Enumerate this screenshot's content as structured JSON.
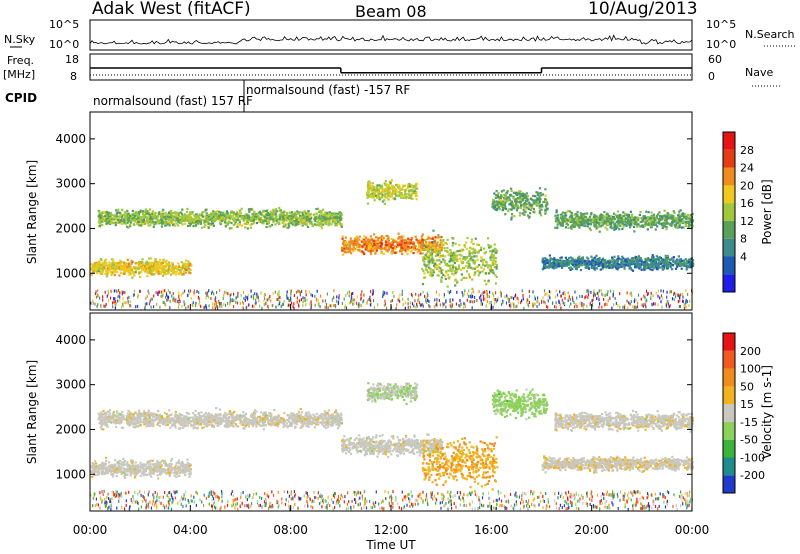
{
  "header": {
    "station": "Adak West (fitACF)",
    "beam": "Beam 08",
    "date": "10/Aug/2013"
  },
  "summary_panel": {
    "left_top_label": "N.Sky",
    "left_freq_label": "Freq.",
    "left_freq_unit": "[MHz]",
    "left_cpid_label": "CPID",
    "right_top_label": "N.Search",
    "right_nave_label": "Nave",
    "nsky_ticks": [
      "10^5",
      "10^0"
    ],
    "nsearch_ticks": [
      "10^5",
      "10^0"
    ],
    "freq_ticks": [
      "18",
      "8"
    ],
    "nave_ticks": [
      "60",
      "0"
    ],
    "cpid_labels": [
      {
        "text": "normalsound (fast) 157 RF",
        "time_h": 0.1
      },
      {
        "text": "normalsound (fast) -157 RF",
        "time_h": 6.05
      }
    ],
    "freq_segments": [
      {
        "t0": 0,
        "t1": 10,
        "mhz": 12.6
      },
      {
        "t0": 10,
        "t1": 18,
        "mhz": 10.6
      },
      {
        "t0": 18,
        "t1": 24,
        "mhz": 12.6
      }
    ]
  },
  "power_panel": {
    "ylabel": "Slant Range [km]",
    "yticks": [
      "1000",
      "2000",
      "3000",
      "4000"
    ],
    "colorbar_label": "Power [dB]",
    "colorbar_ticks": [
      "4",
      "8",
      "12",
      "16",
      "20",
      "24",
      "28"
    ],
    "colors": [
      "#1e1ee6",
      "#1e5ab4",
      "#3c8c8c",
      "#5aa05a",
      "#a0c83c",
      "#f0c81e",
      "#f08c1e",
      "#e63c14",
      "#e61414"
    ]
  },
  "velocity_panel": {
    "ylabel": "Slant Range [km]",
    "yticks": [
      "1000",
      "2000",
      "3000",
      "4000"
    ],
    "colorbar_label": "Velocity [m s-1]",
    "colorbar_ticks": [
      "200",
      "100",
      "50",
      "15",
      "-15",
      "-50",
      "-100",
      "-200"
    ],
    "colors": [
      "#1e3cc8",
      "#1e8c8c",
      "#3cb43c",
      "#8cd25a",
      "#c8c8c0",
      "#f0b41e",
      "#f08c1e",
      "#f05a1e",
      "#e61414"
    ]
  },
  "xaxis": {
    "label": "Time UT",
    "ticks": [
      "00:00",
      "04:00",
      "08:00",
      "12:00",
      "16:00",
      "20:00",
      "00:00"
    ]
  },
  "chart_data": {
    "type": "heatmap",
    "title": "Adak West (fitACF) Beam 08 10/Aug/2013",
    "xlabel": "Time UT",
    "ylabel": "Slant Range [km]",
    "xlim": [
      0,
      24
    ],
    "ylim": [
      180,
      4600
    ],
    "power_range_db": [
      0,
      30
    ],
    "velocity_range": [
      -200,
      200
    ],
    "frequency_mhz": [
      {
        "from": "00:00",
        "to": "10:00",
        "value": 12.6
      },
      {
        "from": "10:00",
        "to": "18:00",
        "value": 10.6
      },
      {
        "from": "18:00",
        "to": "24:00",
        "value": 12.6
      }
    ],
    "echo_bands": [
      {
        "name": "band-a",
        "t0": 0.3,
        "t1": 10.0,
        "r_center": 2250,
        "r_width": 260,
        "power_db": 14,
        "velocity": -5
      },
      {
        "name": "band-b",
        "t0": 10.0,
        "t1": 14.0,
        "r_center": 1650,
        "r_width": 280,
        "power_db": 22,
        "velocity": 0
      },
      {
        "name": "band-c",
        "t0": 13.2,
        "t1": 16.2,
        "r_center": 1300,
        "r_width": 700,
        "power_db": 15,
        "velocity": -60
      },
      {
        "name": "band-d",
        "t0": 11.0,
        "t1": 13.0,
        "r_center": 2850,
        "r_width": 300,
        "power_db": 16,
        "velocity": 20
      },
      {
        "name": "band-e",
        "t0": 16.0,
        "t1": 18.2,
        "r_center": 2600,
        "r_width": 400,
        "power_db": 12,
        "velocity": 40
      },
      {
        "name": "band-f",
        "t0": 18.5,
        "t1": 24.0,
        "r_center": 2200,
        "r_width": 260,
        "power_db": 12,
        "velocity": -5
      },
      {
        "name": "band-g",
        "t0": 0.0,
        "t1": 4.0,
        "r_center": 1150,
        "r_width": 250,
        "power_db": 18,
        "velocity": -5
      },
      {
        "name": "band-h",
        "t0": 18.0,
        "t1": 24.0,
        "r_center": 1250,
        "r_width": 200,
        "power_db": 8,
        "velocity": -10
      }
    ]
  }
}
